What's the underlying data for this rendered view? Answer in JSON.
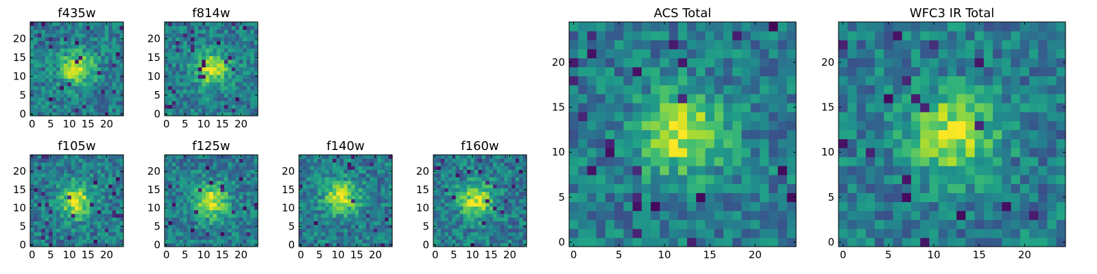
{
  "chart_data": [
    {
      "type": "heatmap",
      "title": "f435w",
      "xticks": [
        "0",
        "5",
        "10",
        "15",
        "20"
      ],
      "yticks": [
        "0",
        "5",
        "10",
        "15",
        "20"
      ],
      "grid": false,
      "colormap": "viridis",
      "peak": {
        "x": 12,
        "y": 12
      },
      "size": 25
    },
    {
      "type": "heatmap",
      "title": "f814w",
      "xticks": [
        "0",
        "5",
        "10",
        "15",
        "20"
      ],
      "yticks": [
        "0",
        "5",
        "10",
        "15",
        "20"
      ],
      "grid": false,
      "colormap": "viridis",
      "peak": {
        "x": 12,
        "y": 12
      },
      "size": 25
    },
    {
      "type": "heatmap",
      "title": "f105w",
      "xticks": [
        "0",
        "5",
        "10",
        "15",
        "20"
      ],
      "yticks": [
        "0",
        "5",
        "10",
        "15",
        "20"
      ],
      "grid": false,
      "colormap": "viridis",
      "peak": {
        "x": 12,
        "y": 12
      },
      "size": 25
    },
    {
      "type": "heatmap",
      "title": "f125w",
      "xticks": [
        "0",
        "5",
        "10",
        "15",
        "20"
      ],
      "yticks": [
        "0",
        "5",
        "10",
        "15",
        "20"
      ],
      "grid": false,
      "colormap": "viridis",
      "peak": {
        "x": 12,
        "y": 12
      },
      "size": 25
    },
    {
      "type": "heatmap",
      "title": "f140w",
      "xticks": [
        "0",
        "5",
        "10",
        "15",
        "20"
      ],
      "yticks": [
        "0",
        "5",
        "10",
        "15",
        "20"
      ],
      "grid": false,
      "colormap": "viridis",
      "peak": {
        "x": 11,
        "y": 13
      },
      "size": 25
    },
    {
      "type": "heatmap",
      "title": "f160w",
      "xticks": [
        "0",
        "5",
        "10",
        "15",
        "20"
      ],
      "yticks": [
        "0",
        "5",
        "10",
        "15",
        "20"
      ],
      "grid": false,
      "colormap": "viridis",
      "peak": {
        "x": 11,
        "y": 12
      },
      "size": 25
    },
    {
      "type": "heatmap",
      "title": "ACS Total",
      "xticks": [
        "0",
        "5",
        "10",
        "15",
        "20"
      ],
      "yticks": [
        "0",
        "5",
        "10",
        "15",
        "20"
      ],
      "grid": false,
      "colormap": "viridis",
      "peak": {
        "x": 12,
        "y": 12
      },
      "size": 25
    },
    {
      "type": "heatmap",
      "title": "WFC3 IR Total",
      "xticks": [
        "0",
        "5",
        "10",
        "15",
        "20"
      ],
      "yticks": [
        "0",
        "5",
        "10",
        "15",
        "20"
      ],
      "grid": false,
      "colormap": "viridis",
      "peak": {
        "x": 12,
        "y": 12
      },
      "size": 25
    }
  ]
}
